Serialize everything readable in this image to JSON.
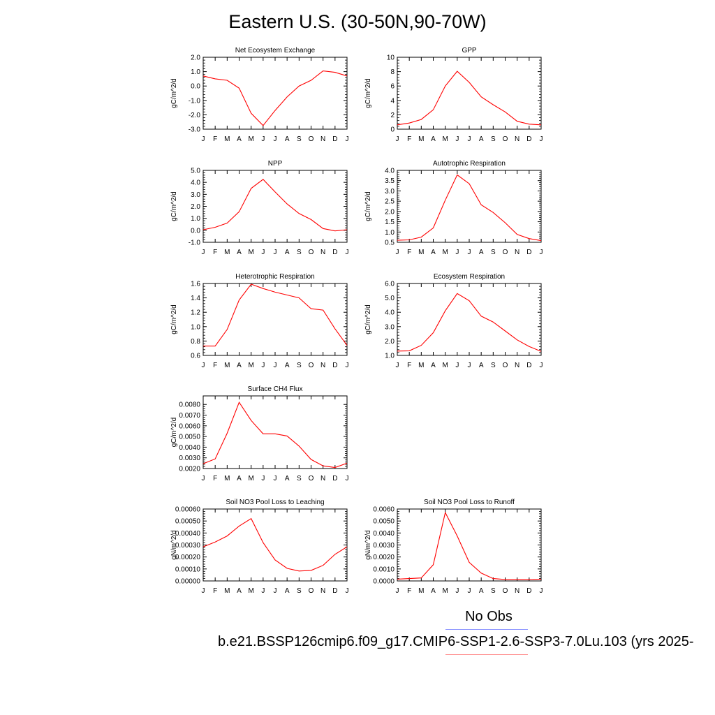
{
  "title": "Eastern U.S. (30-50N,90-70W)",
  "legend": {
    "obs_label": "No Obs",
    "case_label": "b.e21.BSSP126cmip6.f09_g17.CMIP6-SSP1-2.6-SSP3-7.0Lu.103 (yrs 2025-",
    "obs_color": "#8f98ff",
    "case_color": "#ff0000"
  },
  "chart_data": [
    {
      "type": "line",
      "title": "Net Ecosystem Exchange",
      "ylabel": "gC/m^2/d",
      "categories": [
        "J",
        "F",
        "M",
        "A",
        "M",
        "J",
        "J",
        "A",
        "S",
        "O",
        "N",
        "D",
        "J"
      ],
      "ylim": [
        -3.0,
        2.0
      ],
      "yticks": [
        "2.0",
        "1.0",
        "0.0",
        "-1.0",
        "-2.0",
        "-3.0"
      ],
      "series": [
        {
          "values": [
            0.7,
            0.5,
            0.4,
            -0.15,
            -1.9,
            -2.75,
            -1.7,
            -0.75,
            0.0,
            0.4,
            1.05,
            0.95,
            0.7
          ]
        }
      ]
    },
    {
      "type": "line",
      "title": "GPP",
      "ylabel": "gC/m^2/d",
      "categories": [
        "J",
        "F",
        "M",
        "A",
        "M",
        "J",
        "J",
        "A",
        "S",
        "O",
        "N",
        "D",
        "J"
      ],
      "ylim": [
        0,
        10
      ],
      "yticks": [
        "10",
        "8",
        "6",
        "4",
        "2",
        "0"
      ],
      "series": [
        {
          "values": [
            0.6,
            0.85,
            1.35,
            2.7,
            6.0,
            8.05,
            6.5,
            4.5,
            3.4,
            2.4,
            1.1,
            0.7,
            0.6
          ]
        }
      ]
    },
    {
      "type": "line",
      "title": "NPP",
      "ylabel": "gC/m^2/d",
      "categories": [
        "J",
        "F",
        "M",
        "A",
        "M",
        "J",
        "J",
        "A",
        "S",
        "O",
        "N",
        "D",
        "J"
      ],
      "ylim": [
        -1.0,
        5.0
      ],
      "yticks": [
        "5.0",
        "4.0",
        "3.0",
        "2.0",
        "1.0",
        "0.0",
        "-1.0"
      ],
      "series": [
        {
          "values": [
            0.05,
            0.25,
            0.6,
            1.55,
            3.5,
            4.25,
            3.2,
            2.2,
            1.4,
            0.9,
            0.15,
            -0.05,
            0.05
          ]
        }
      ]
    },
    {
      "type": "line",
      "title": "Autotrophic Respiration",
      "ylabel": "gC/m^2/d",
      "categories": [
        "J",
        "F",
        "M",
        "A",
        "M",
        "J",
        "J",
        "A",
        "S",
        "O",
        "N",
        "D",
        "J"
      ],
      "ylim": [
        0.5,
        4.0
      ],
      "yticks": [
        "4.0",
        "3.5",
        "3.0",
        "2.5",
        "2.0",
        "1.5",
        "1.0",
        "0.5"
      ],
      "series": [
        {
          "values": [
            0.6,
            0.62,
            0.75,
            1.2,
            2.55,
            3.78,
            3.35,
            2.32,
            1.95,
            1.45,
            0.88,
            0.68,
            0.58
          ]
        }
      ]
    },
    {
      "type": "line",
      "title": "Heterotrophic Respiration",
      "ylabel": "gC/m^2/d",
      "categories": [
        "J",
        "F",
        "M",
        "A",
        "M",
        "J",
        "J",
        "A",
        "S",
        "O",
        "N",
        "D",
        "J"
      ],
      "ylim": [
        0.6,
        1.6
      ],
      "yticks": [
        "1.6",
        "1.4",
        "1.2",
        "1.0",
        "0.8",
        "0.6"
      ],
      "series": [
        {
          "values": [
            0.73,
            0.73,
            0.96,
            1.37,
            1.59,
            1.53,
            1.48,
            1.44,
            1.4,
            1.25,
            1.23,
            0.97,
            0.74
          ]
        }
      ]
    },
    {
      "type": "line",
      "title": "Ecosystem Respiration",
      "ylabel": "gC/m^2/d",
      "categories": [
        "J",
        "F",
        "M",
        "A",
        "M",
        "J",
        "J",
        "A",
        "S",
        "O",
        "N",
        "D",
        "J"
      ],
      "ylim": [
        1.0,
        6.0
      ],
      "yticks": [
        "6.0",
        "5.0",
        "4.0",
        "3.0",
        "2.0",
        "1.0"
      ],
      "series": [
        {
          "values": [
            1.3,
            1.32,
            1.7,
            2.58,
            4.1,
            5.3,
            4.8,
            3.73,
            3.32,
            2.7,
            2.08,
            1.62,
            1.28
          ]
        }
      ]
    },
    {
      "type": "line",
      "title": "Surface CH4 Flux",
      "ylabel": "gC/m^2/d",
      "categories": [
        "J",
        "F",
        "M",
        "A",
        "M",
        "J",
        "J",
        "A",
        "S",
        "O",
        "N",
        "D",
        "J"
      ],
      "ylim": [
        0.002,
        0.0088
      ],
      "yticks": [
        "0.0080",
        "0.0070",
        "0.0060",
        "0.0050",
        "0.0040",
        "0.0030",
        "0.0020"
      ],
      "series": [
        {
          "values": [
            0.00245,
            0.0029,
            0.0053,
            0.0082,
            0.0065,
            0.00525,
            0.00525,
            0.00505,
            0.0041,
            0.00285,
            0.00225,
            0.0021,
            0.0025
          ]
        }
      ]
    },
    {
      "type": "line",
      "title": "Soil NO3 Pool Loss to Leaching",
      "ylabel": "gN/m^2/d",
      "categories": [
        "J",
        "F",
        "M",
        "A",
        "M",
        "J",
        "J",
        "A",
        "S",
        "O",
        "N",
        "D",
        "J"
      ],
      "ylim": [
        0.0,
        0.0006
      ],
      "yticks": [
        "0.00060",
        "0.00050",
        "0.00040",
        "0.00030",
        "0.00020",
        "0.00010",
        "0.00000"
      ],
      "series": [
        {
          "values": [
            0.000285,
            0.000325,
            0.000375,
            0.000458,
            0.00052,
            0.00032,
            0.000175,
            0.000105,
            8.3e-05,
            8.8e-05,
            0.00013,
            0.000222,
            0.000285
          ]
        }
      ]
    },
    {
      "type": "line",
      "title": "Soil NO3 Pool Loss to Runoff",
      "ylabel": "gN/m^2/d",
      "categories": [
        "J",
        "F",
        "M",
        "A",
        "M",
        "J",
        "J",
        "A",
        "S",
        "O",
        "N",
        "D",
        "J"
      ],
      "ylim": [
        0.0,
        0.006
      ],
      "yticks": [
        "0.0060",
        "0.0050",
        "0.0040",
        "0.0030",
        "0.0020",
        "0.0010",
        "0.0000"
      ],
      "series": [
        {
          "values": [
            0.00015,
            0.0002,
            0.00025,
            0.00135,
            0.0057,
            0.00375,
            0.00155,
            0.00065,
            0.0002,
            0.00012,
            0.00012,
            0.00012,
            0.00015
          ]
        }
      ]
    }
  ]
}
